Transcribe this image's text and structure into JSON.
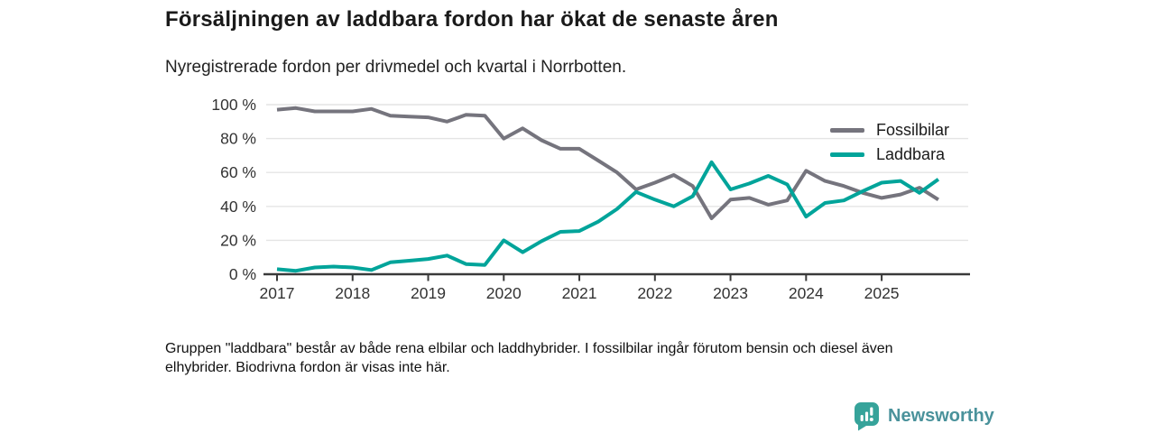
{
  "header": {
    "title": "Försäljningen av laddbara fordon har ökat de senaste åren",
    "subtitle": "Nyregistrerade fordon per drivmedel och kvartal i Norrbotten."
  },
  "chart_data": {
    "type": "line",
    "x_frequency": "quarterly",
    "x_range": "2017 Q1 – 2025 Q4",
    "x_tick_labels": [
      "2017",
      "2018",
      "2019",
      "2020",
      "2021",
      "2022",
      "2023",
      "2024",
      "2025"
    ],
    "y_tick_labels": [
      "0 %",
      "20 %",
      "40 %",
      "60 %",
      "80 %",
      "100 %"
    ],
    "ylim": [
      0,
      100
    ],
    "grid": "horizontal",
    "legend_position": "top-right",
    "series": [
      {
        "name": "Fossilbilar",
        "color": "#75747d",
        "values": [
          97,
          98,
          96,
          96,
          96,
          97.5,
          93.5,
          93,
          92.5,
          90,
          94,
          93.5,
          80,
          86,
          79,
          74,
          74,
          67,
          60,
          50,
          54,
          58.5,
          52,
          33,
          44,
          45,
          41,
          43.5,
          61,
          55,
          52,
          48,
          45,
          47,
          51,
          44
        ]
      },
      {
        "name": "Laddbara",
        "color": "#00a49a",
        "values": [
          3,
          2,
          4,
          4.5,
          4,
          2.5,
          7,
          8,
          9,
          11,
          6,
          5.5,
          20,
          13,
          19.5,
          25,
          25.5,
          31,
          38.5,
          48.5,
          44,
          40,
          46,
          66,
          50,
          53.5,
          58,
          53,
          34,
          42,
          43.5,
          49,
          54,
          55,
          48,
          56
        ]
      }
    ]
  },
  "footer": {
    "note_line1": "Gruppen \"laddbara\" består av både rena elbilar och laddhybrider. I fossilbilar ingår förutom bensin och diesel även",
    "note_line2": "elhybrider. Biodrivna fordon är visas inte här."
  },
  "branding": {
    "logo_text": "Newsworthy",
    "logo_text_color": "#4a929b",
    "icon_color": "#36a39a",
    "icon_name": "bar-chart-speech-bubble"
  },
  "style_colors": {
    "axis": "#3a3a3a",
    "gridline": "#e4e4e4",
    "tick_text": "#333333"
  }
}
